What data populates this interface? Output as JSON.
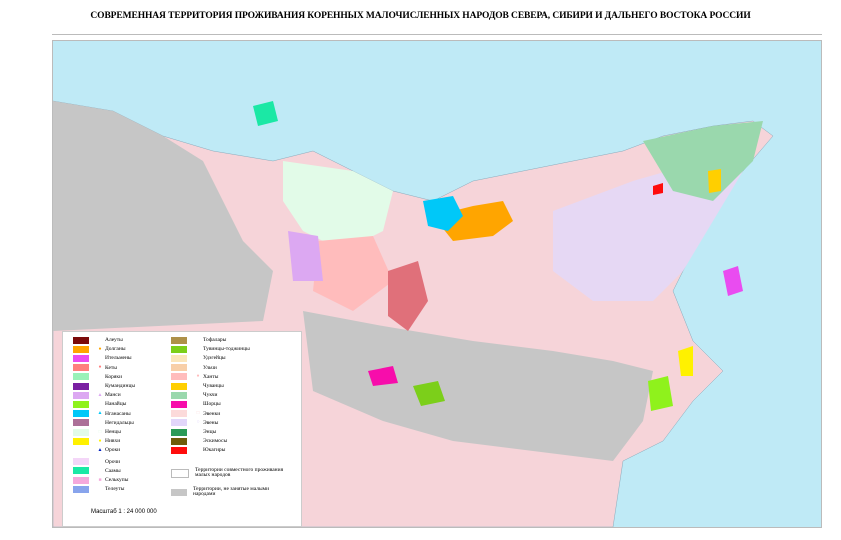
{
  "title": "СОВРЕМЕННАЯ ТЕРРИТОРИЯ ПРОЖИВАНИЯ КОРЕННЫХ МАЛОЧИСЛЕННЫХ НАРОДОВ СЕВЕРА, СИБИРИ И ДАЛЬНЕГО ВОСТОКА РОССИИ",
  "colors": {
    "sea": "#bfeaf6",
    "land": "#f6d4d9",
    "gray": "#c6c6c6",
    "joint": "#e6d8f4"
  },
  "legend": {
    "left": [
      {
        "label": "Алеуты",
        "color": "#7b0a0a",
        "symbol": ""
      },
      {
        "label": "Долганы",
        "color": "#ffa500",
        "symbol": "●"
      },
      {
        "label": "Ительмены",
        "color": "#e94cf0",
        "symbol": ""
      },
      {
        "label": "Кеты",
        "color": "#ff7f7f",
        "symbol": "●"
      },
      {
        "label": "Коряки",
        "color": "#99f2b8",
        "symbol": ""
      },
      {
        "label": "Кумандинцы",
        "color": "#7a1fa2",
        "symbol": ""
      },
      {
        "label": "Манси",
        "color": "#dca8f2",
        "symbol": "▲"
      },
      {
        "label": "Нанайцы",
        "color": "#8ff21c",
        "symbol": ""
      },
      {
        "label": "Нганасаны",
        "color": "#00c8f8",
        "symbol": "▲"
      },
      {
        "label": "Негидальцы",
        "color": "#ac7098",
        "symbol": ""
      },
      {
        "label": "Ненцы",
        "color": "#e2fbe8",
        "symbol": "□"
      },
      {
        "label": "Нивхи",
        "color": "#fff100",
        "symbol": "●"
      },
      {
        "label": "Ороки",
        "color": "",
        "symbol": "▲"
      },
      {
        "label": "Орочи",
        "color": "#f4d6f8",
        "symbol": ""
      },
      {
        "label": "Саамы",
        "color": "#1be8a5",
        "symbol": ""
      },
      {
        "label": "Селькупы",
        "color": "#f5a9dc",
        "symbol": "■"
      },
      {
        "label": "Телеуты",
        "color": "#88a4ec",
        "symbol": ""
      }
    ],
    "right": [
      {
        "label": "Тофалары",
        "color": "#ae9149",
        "symbol": ""
      },
      {
        "label": "Тувинцы-тоджинцы",
        "color": "#7ccf1a",
        "symbol": ""
      },
      {
        "label": "Удэгейцы",
        "color": "#fbe6bb",
        "symbol": ""
      },
      {
        "label": "Ульчи",
        "color": "#f8cfa8",
        "symbol": ""
      },
      {
        "label": "Ханты",
        "color": "#ffbcbc",
        "symbol": "●"
      },
      {
        "label": "Чуванцы",
        "color": "#ffcf00",
        "symbol": ""
      },
      {
        "label": "Чукчи",
        "color": "#9ad8ad",
        "symbol": ""
      },
      {
        "label": "Шорцы",
        "color": "#f70dab",
        "symbol": ""
      },
      {
        "label": "Эвенки",
        "color": "#fcdada",
        "symbol": "□"
      },
      {
        "label": "Эвены",
        "color": "#e2d6fa",
        "symbol": "○"
      },
      {
        "label": "Энцы",
        "color": "#2b9a57",
        "symbol": ""
      },
      {
        "label": "Эскимосы",
        "color": "#6e5c0a",
        "symbol": ""
      },
      {
        "label": "Юкагиры",
        "color": "#ff0c0c",
        "symbol": ""
      }
    ],
    "joint": "Территории совместного проживания малых народов",
    "none": "Территории, не занятые малыми народами",
    "scale": "Масштаб  1 : 24 000 000"
  }
}
